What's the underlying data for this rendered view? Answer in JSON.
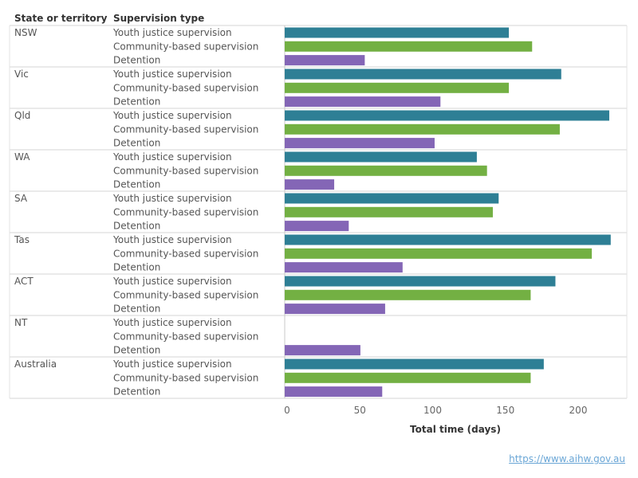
{
  "header": {
    "col_state": "State or territory",
    "col_type": "Supervision type"
  },
  "footer": {
    "url": "https://www.aihw.gov.au"
  },
  "chart_data": {
    "type": "bar",
    "orientation": "horizontal",
    "xlabel": "Total time (days)",
    "xlim": [
      0,
      225
    ],
    "xticks": [
      0,
      50,
      100,
      150,
      200
    ],
    "grid": false,
    "legend": "none",
    "series_colors": {
      "Youth justice supervision": "#2e7f95",
      "Community-based supervision": "#73b043",
      "Detention": "#8466b6"
    },
    "types": [
      "Youth justice supervision",
      "Community-based supervision",
      "Detention"
    ],
    "groups": [
      {
        "state": "NSW",
        "values": [
          154,
          170,
          55
        ]
      },
      {
        "state": "Vic",
        "values": [
          190,
          154,
          107
        ]
      },
      {
        "state": "Qld",
        "values": [
          223,
          189,
          103
        ]
      },
      {
        "state": "WA",
        "values": [
          132,
          139,
          34
        ]
      },
      {
        "state": "SA",
        "values": [
          147,
          143,
          44
        ]
      },
      {
        "state": "Tas",
        "values": [
          224,
          211,
          81
        ]
      },
      {
        "state": "ACT",
        "values": [
          186,
          169,
          69
        ]
      },
      {
        "state": "NT",
        "values": [
          null,
          null,
          52
        ]
      },
      {
        "state": "Australia",
        "values": [
          178,
          169,
          67
        ]
      }
    ]
  }
}
